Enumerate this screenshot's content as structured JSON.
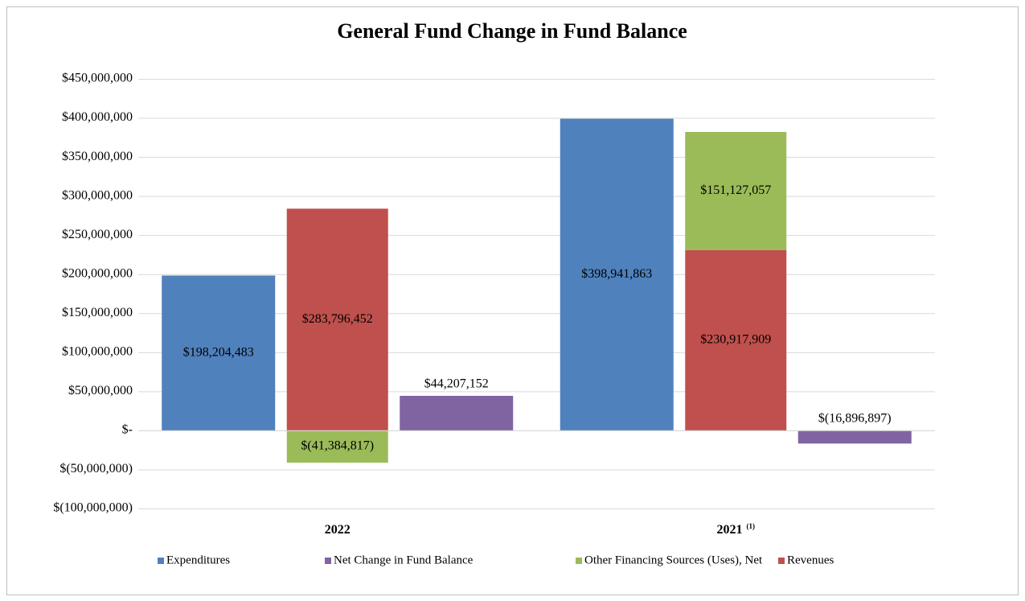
{
  "chart_data": {
    "type": "bar",
    "title": "General Fund Change in Fund Balance",
    "categories": [
      "2022",
      "2021"
    ],
    "category_footnotes": [
      null,
      "(1)"
    ],
    "series": [
      {
        "name": "Expenditures",
        "color": "#4f81bd",
        "values": [
          198204483,
          398941863
        ],
        "value_labels": [
          "$198,204,483",
          "$398,941,863"
        ]
      },
      {
        "name": "Net Change in Fund Balance",
        "color": "#8064a2",
        "values": [
          44207152,
          -16896897
        ],
        "value_labels": [
          "$44,207,152",
          "$(16,896,897)"
        ]
      },
      {
        "name": "Other Financing Sources (Uses), Net",
        "color": "#9bbb59",
        "values": [
          -41384817,
          151127057
        ],
        "value_labels": [
          "$(41,384,817)",
          "$151,127,057"
        ],
        "stack": "sources"
      },
      {
        "name": "Revenues",
        "color": "#c0504d",
        "values": [
          283796452,
          230917909
        ],
        "value_labels": [
          "$283,796,452",
          "$230,917,909"
        ],
        "stack": "sources"
      }
    ],
    "ylim": [
      -100000000,
      450000000
    ],
    "yticks": [
      {
        "value": -100000000,
        "label": "$(100,000,000)"
      },
      {
        "value": -50000000,
        "label": "$(50,000,000)"
      },
      {
        "value": 0,
        "label": "$-"
      },
      {
        "value": 50000000,
        "label": "$50,000,000"
      },
      {
        "value": 100000000,
        "label": "$100,000,000"
      },
      {
        "value": 150000000,
        "label": "$150,000,000"
      },
      {
        "value": 200000000,
        "label": "$200,000,000"
      },
      {
        "value": 250000000,
        "label": "$250,000,000"
      },
      {
        "value": 300000000,
        "label": "$300,000,000"
      },
      {
        "value": 350000000,
        "label": "$350,000,000"
      },
      {
        "value": 400000000,
        "label": "$400,000,000"
      },
      {
        "value": 450000000,
        "label": "$450,000,000"
      }
    ],
    "grid": true,
    "legend": "bottom"
  }
}
